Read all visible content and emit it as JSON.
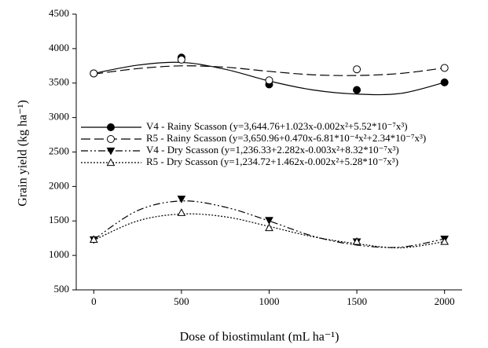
{
  "chart_data": {
    "type": "scatter-fit",
    "xlabel": "Dose of biostimulant (mL ha⁻¹)",
    "ylabel": "Grain yield (kg ha⁻¹)",
    "x": [
      0,
      500,
      1000,
      1500,
      2000
    ],
    "xlim": [
      -100,
      2100
    ],
    "xticks": [
      0,
      500,
      1000,
      1500,
      2000
    ],
    "ylim": [
      500,
      4500
    ],
    "yticks": [
      500,
      1000,
      1500,
      2000,
      2500,
      3000,
      3500,
      4000,
      4500
    ],
    "series": [
      {
        "name": "V4 - Rainy Scasson (y=3,644.76+1.023x-0.002x²+5.52*10⁻⁷x³)",
        "color": "#000000",
        "marker": "circle-filled",
        "dash": "solid",
        "values": [
          3640,
          3870,
          3480,
          3400,
          3510
        ],
        "fit_x": [
          0,
          250,
          500,
          750,
          1000,
          1250,
          1500,
          1750,
          2000
        ],
        "fit_values": [
          3640,
          3760,
          3800,
          3700,
          3530,
          3400,
          3340,
          3350,
          3510
        ]
      },
      {
        "name": "R5 - Rainy Scasson (y=3,650.96+0.470x-6.81*10⁻⁴x²+2.34*10⁻⁷x³)",
        "color": "#000000",
        "marker": "circle-open",
        "dash": "long-dash",
        "values": [
          3640,
          3840,
          3540,
          3700,
          3720
        ],
        "fit_x": [
          0,
          250,
          500,
          750,
          1000,
          1250,
          1500,
          1750,
          2000
        ],
        "fit_values": [
          3630,
          3710,
          3750,
          3730,
          3670,
          3620,
          3610,
          3640,
          3720
        ]
      },
      {
        "name": "V4 - Dry Scasson (y=1,236.33+2.282x-0.003x²+8.32*10⁻⁷x³)",
        "color": "#000000",
        "marker": "triangle-down-filled",
        "dash": "dash-dot-dot",
        "values": [
          1230,
          1820,
          1510,
          1200,
          1240
        ],
        "fit_x": [
          0,
          250,
          500,
          750,
          1000,
          1250,
          1500,
          1750,
          2000
        ],
        "fit_values": [
          1230,
          1650,
          1790,
          1700,
          1500,
          1280,
          1150,
          1120,
          1240
        ]
      },
      {
        "name": "R5 - Dry Scasson  (y=1,234.72+1.462x-0.002x²+5.28*10⁻⁷x³)",
        "color": "#000000",
        "marker": "triangle-up-open",
        "dash": "dotted",
        "values": [
          1230,
          1620,
          1400,
          1200,
          1200
        ],
        "fit_x": [
          0,
          250,
          500,
          750,
          1000,
          1250,
          1500,
          1750,
          2000
        ],
        "fit_values": [
          1220,
          1500,
          1600,
          1560,
          1420,
          1270,
          1170,
          1110,
          1200
        ]
      }
    ]
  }
}
